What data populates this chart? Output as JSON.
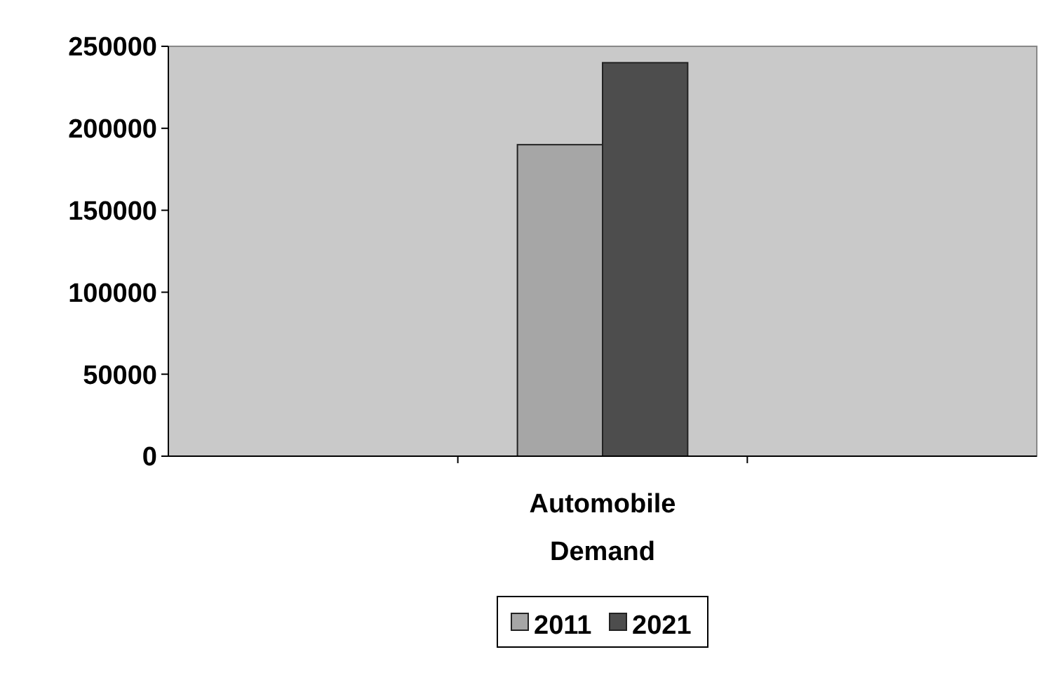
{
  "chart_data": {
    "type": "bar",
    "categories": [
      null,
      "Automobile Demand",
      null
    ],
    "series": [
      {
        "name": "2011",
        "color": "#a6a6a6",
        "values": [
          null,
          190000,
          null
        ]
      },
      {
        "name": "2021",
        "color": "#4d4d4d",
        "values": [
          null,
          240000,
          null
        ]
      }
    ],
    "ylim": [
      0,
      250000
    ],
    "yticks": [
      0,
      50000,
      100000,
      150000,
      200000,
      250000
    ],
    "grid": false,
    "legend": "bottom"
  }
}
